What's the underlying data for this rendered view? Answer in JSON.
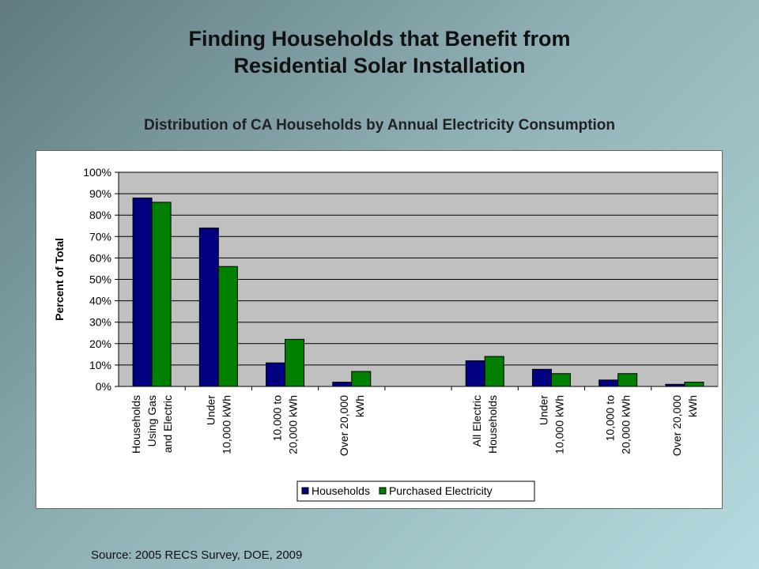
{
  "slide": {
    "title_line1": "Finding Households that Benefit from",
    "title_line2": "Residential Solar Installation",
    "subtitle": "Distribution of CA Households by Annual Electricity Consumption",
    "source": "Source: 2005 RECS Survey, DOE, 2009"
  },
  "chart_data": {
    "type": "bar",
    "title": "Distribution of CA Households by Annual Electricity Consumption",
    "ylabel": "Percent of Total",
    "xlabel": "",
    "ylim": [
      0,
      100
    ],
    "yticks": [
      "0%",
      "10%",
      "20%",
      "30%",
      "40%",
      "50%",
      "60%",
      "70%",
      "80%",
      "90%",
      "100%"
    ],
    "grid": true,
    "legend_position": "bottom",
    "categories": [
      [
        "Households",
        "Using Gas",
        "and Electric"
      ],
      [
        "Under",
        "10,000 kWh"
      ],
      [
        "10,000 to",
        "20,000 kWh"
      ],
      [
        "Over 20,000",
        "kWh"
      ],
      [],
      [
        "All Electric",
        "Households"
      ],
      [
        "Under",
        "10,000 kWh"
      ],
      [
        "10,000 to",
        "20,000 kWh"
      ],
      [
        "Over 20,000",
        "kWh"
      ]
    ],
    "series": [
      {
        "name": "Households",
        "color": "#000080",
        "values": [
          88,
          74,
          11,
          2,
          null,
          12,
          8,
          3,
          1
        ]
      },
      {
        "name": "Purchased Electricity",
        "color": "#008000",
        "values": [
          86,
          56,
          22,
          7,
          null,
          14,
          6,
          6,
          2
        ]
      }
    ],
    "plot_background": "#c0c0c0"
  }
}
